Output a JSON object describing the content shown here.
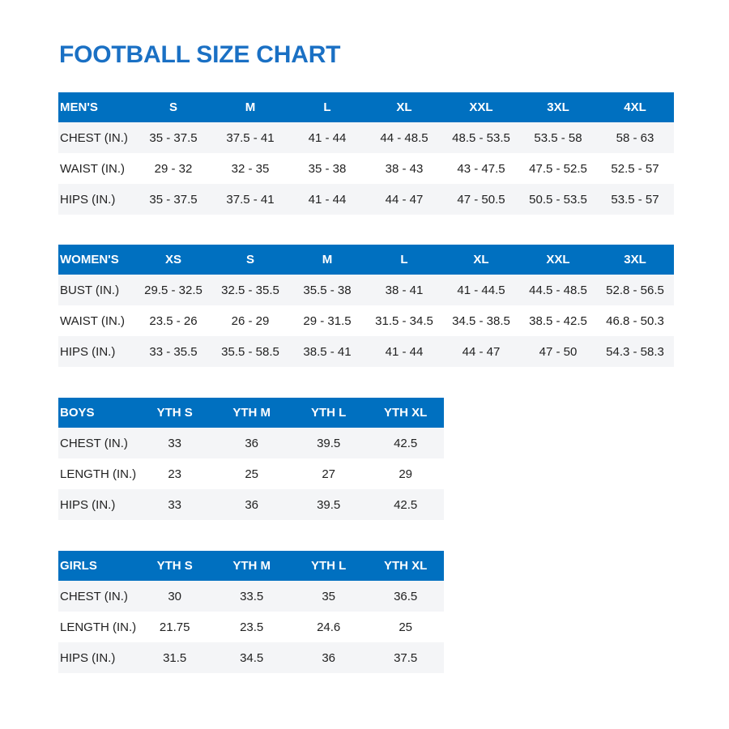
{
  "title": "FOOTBALL SIZE CHART",
  "colors": {
    "header": "#0070c0",
    "title": "#1a70c4",
    "alt_row": "#f4f5f7"
  },
  "tables": [
    {
      "header": [
        "MEN'S",
        "S",
        "M",
        "L",
        "XL",
        "XXL",
        "3XL",
        "4XL"
      ],
      "rows": [
        [
          "CHEST (IN.)",
          "35 - 37.5",
          "37.5 - 41",
          "41 - 44",
          "44 - 48.5",
          "48.5 - 53.5",
          "53.5 - 58",
          "58 - 63"
        ],
        [
          "WAIST (IN.)",
          "29 - 32",
          "32 - 35",
          "35 - 38",
          "38 - 43",
          "43 - 47.5",
          "47.5 - 52.5",
          "52.5 - 57"
        ],
        [
          "HIPS (IN.)",
          "35 - 37.5",
          "37.5 - 41",
          "41 - 44",
          "44 - 47",
          "47 - 50.5",
          "50.5 - 53.5",
          "53.5 - 57"
        ]
      ]
    },
    {
      "header": [
        "WOMEN'S",
        "XS",
        "S",
        "M",
        "L",
        "XL",
        "XXL",
        "3XL"
      ],
      "rows": [
        [
          "BUST (IN.)",
          "29.5 - 32.5",
          "32.5 - 35.5",
          "35.5 - 38",
          "38 - 41",
          "41 - 44.5",
          "44.5 - 48.5",
          "52.8 - 56.5"
        ],
        [
          "WAIST (IN.)",
          "23.5 - 26",
          "26 - 29",
          "29 - 31.5",
          "31.5 - 34.5",
          "34.5 - 38.5",
          "38.5 - 42.5",
          "46.8 - 50.3"
        ],
        [
          "HIPS (IN.)",
          "33 - 35.5",
          "35.5 - 58.5",
          "38.5 - 41",
          "41 - 44",
          "44 - 47",
          "47 - 50",
          "54.3 - 58.3"
        ]
      ]
    },
    {
      "header": [
        "BOYS",
        "YTH S",
        "YTH M",
        "YTH L",
        "YTH XL"
      ],
      "rows": [
        [
          "CHEST (IN.)",
          "33",
          "36",
          "39.5",
          "42.5"
        ],
        [
          "LENGTH (IN.)",
          "23",
          "25",
          "27",
          "29"
        ],
        [
          "HIPS (IN.)",
          "33",
          "36",
          "39.5",
          "42.5"
        ]
      ]
    },
    {
      "header": [
        "GIRLS",
        "YTH S",
        "YTH M",
        "YTH L",
        "YTH XL"
      ],
      "rows": [
        [
          "CHEST (IN.)",
          "30",
          "33.5",
          "35",
          "36.5"
        ],
        [
          "LENGTH (IN.)",
          "21.75",
          "23.5",
          "24.6",
          "25"
        ],
        [
          "HIPS (IN.)",
          "31.5",
          "34.5",
          "36",
          "37.5"
        ]
      ]
    }
  ]
}
